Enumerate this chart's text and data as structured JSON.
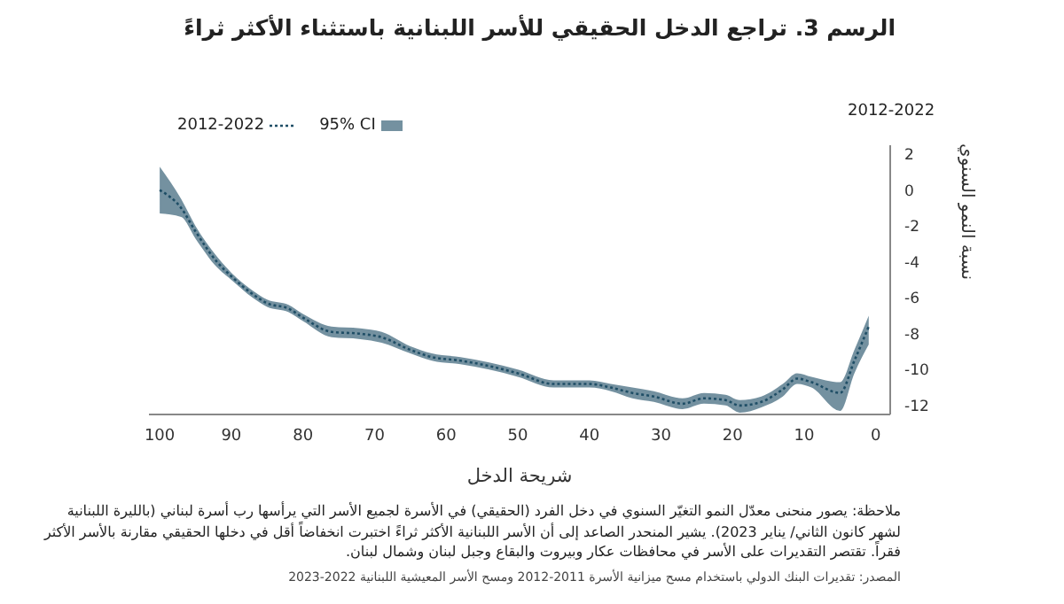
{
  "chart_data": {
    "type": "line",
    "title": "الرسم 3. تراجع الدخل الحقيقي للأسر اللبنانية باستثناء الأكثر ثراءً",
    "xlabel": "شريحة الدخل",
    "ylabel": "نسبة النمو السنوي",
    "x": [
      100,
      97,
      95,
      92,
      90,
      87,
      85,
      82,
      80,
      76,
      72,
      69,
      65,
      62,
      58,
      54,
      50,
      45,
      40,
      37,
      34,
      31,
      27,
      24,
      21,
      19,
      16,
      13,
      11,
      9,
      5,
      3,
      1
    ],
    "series": [
      {
        "name": "2012-2022",
        "color": "#1f4e66",
        "line_style": "dotted",
        "values": [
          0,
          -1.0,
          -2.3,
          -4.0,
          -4.8,
          -5.8,
          -6.3,
          -6.6,
          -7.1,
          -7.9,
          -8.0,
          -8.2,
          -8.9,
          -9.3,
          -9.5,
          -9.8,
          -10.2,
          -10.8,
          -10.8,
          -11.0,
          -11.3,
          -11.5,
          -11.9,
          -11.6,
          -11.7,
          -12.0,
          -11.8,
          -11.1,
          -10.5,
          -10.7,
          -11.3,
          -9.5,
          -7.6
        ],
        "lower": [
          -1.3,
          -1.5,
          -2.7,
          -4.3,
          -5.0,
          -6.0,
          -6.5,
          -6.8,
          -7.3,
          -8.2,
          -8.3,
          -8.5,
          -9.1,
          -9.5,
          -9.7,
          -10.0,
          -10.4,
          -11.0,
          -11.0,
          -11.2,
          -11.6,
          -11.8,
          -12.2,
          -11.9,
          -12.0,
          -12.4,
          -12.1,
          -11.5,
          -10.8,
          -11.0,
          -12.3,
          -10.2,
          -8.6
        ],
        "upper": [
          1.3,
          -0.5,
          -2.0,
          -3.7,
          -4.6,
          -5.6,
          -6.1,
          -6.4,
          -6.9,
          -7.6,
          -7.7,
          -7.9,
          -8.7,
          -9.1,
          -9.3,
          -9.6,
          -10.0,
          -10.6,
          -10.6,
          -10.8,
          -11.0,
          -11.2,
          -11.6,
          -11.3,
          -11.4,
          -11.7,
          -11.5,
          -10.8,
          -10.2,
          -10.4,
          -10.7,
          -8.9,
          -7.0
        ]
      }
    ],
    "xlim": [
      101.5,
      -2
    ],
    "xticks": [
      100,
      90,
      80,
      70,
      60,
      50,
      40,
      30,
      20,
      10,
      0
    ],
    "ylim": [
      -12.5,
      2.5
    ],
    "yticks": [
      2,
      0,
      -2,
      -4,
      -6,
      -8,
      -10,
      -12
    ],
    "grid": false,
    "legend": "top left",
    "marker": "none",
    "annotations": [
      "95% CI",
      "2012-2022",
      "ملاحظة: يصور منحنى معدّل النمو التغيّر السنوي في دخل الفرد (الحقيقي) في الأسرة لجميع الأسر التي يرأسها رب أسرة لبناني (بالليرة اللبنانية لشهر كانون الثاني/ يناير 2023). يشير المنحدر الصاعد إلى أن الأسر اللبنانية الأكثر ثراءً اختبرت انخفاضاً أقل في دخلها الحقيقي مقارنة بالأسر الأكثر فقراً. تقتصر التقديرات على الأسر في محافظات عكار وبيروت والبقاع وجبل لبنان وشمال لبنان.",
      "المصدر: تقديرات البنك الدولي باستخدام مسح ميزانية الأسرة 2011-2012 ومسح الأسر المعيشية اللبنانية 2022-2023"
    ]
  }
}
